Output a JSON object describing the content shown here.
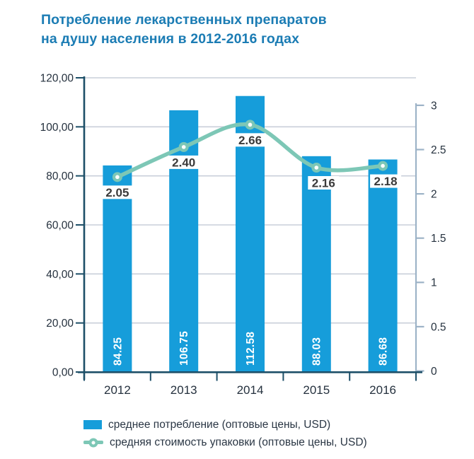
{
  "title": {
    "line1": "Потребление лекарственных препаратов",
    "line2": "на душу населения в 2012-2016 годах"
  },
  "colors": {
    "bar": "#169dda",
    "line": "#7dc7b6",
    "title": "#1b7cb4",
    "axis_dark": "#1d4f68",
    "axis_light": "#9db3c7",
    "grid": "#c9cfda",
    "tick_label": "#25313e",
    "point_label": "#3a3a3a",
    "bar_label": "#ffffff",
    "background": "#ffffff"
  },
  "chart_data": {
    "type": "bar",
    "title": "Потребление лекарственных препаратов на душу населения в 2012-2016 годах",
    "categories": [
      "2012",
      "2013",
      "2014",
      "2015",
      "2016"
    ],
    "series": [
      {
        "name": "среднее потребление (оптовые цены, USD)",
        "type": "bar",
        "axis": "left",
        "values": [
          84.25,
          106.75,
          112.58,
          88.03,
          86.68
        ],
        "labels": [
          "84.25",
          "106.75",
          "112.58",
          "88.03",
          "86.68"
        ]
      },
      {
        "name": "средняя стоимость упаковки (оптовые цены, USD)",
        "type": "line",
        "axis": "right",
        "values": [
          2.05,
          2.4,
          2.66,
          2.16,
          2.18
        ],
        "labels": [
          "2.05",
          "2.40",
          "2.66",
          "2.16",
          "2.18"
        ]
      }
    ],
    "left_axis": {
      "min": 0,
      "max": 120,
      "step": 20,
      "tick_values": [
        120,
        100,
        80,
        60,
        40,
        20,
        0
      ],
      "tick_labels": [
        "120,00",
        "100,00",
        "80,00",
        "60,00",
        "40,00",
        "20,00",
        "0,00"
      ]
    },
    "right_axis": {
      "min": 0,
      "max": 3,
      "step": 0.5,
      "tick_values": [
        3,
        2.5,
        2,
        1.5,
        1,
        0.5,
        0
      ],
      "tick_labels": [
        "3",
        "2.5",
        "2",
        "1.5",
        "1",
        "0.5",
        "0"
      ]
    },
    "grid": true,
    "legend_position": "bottom"
  }
}
